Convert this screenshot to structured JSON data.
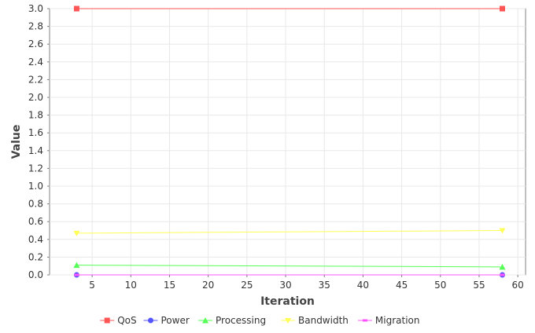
{
  "chart_data": {
    "type": "line",
    "title": "",
    "xlabel": "Iteration",
    "ylabel": "Value",
    "xlim": [
      -0.5,
      61
    ],
    "ylim": [
      0,
      3.0
    ],
    "x_ticks": [
      5,
      10,
      15,
      20,
      25,
      30,
      35,
      40,
      45,
      50,
      55,
      60
    ],
    "y_ticks": [
      0.0,
      0.2,
      0.4,
      0.6,
      0.8,
      1.0,
      1.2,
      1.4,
      1.6,
      1.8,
      2.0,
      2.2,
      2.4,
      2.6,
      2.8,
      3.0
    ],
    "y_tick_labels": [
      "0.0",
      "0.2",
      "0.4",
      "0.6",
      "0.8",
      "1.0",
      "1.2",
      "1.4",
      "1.6",
      "1.8",
      "2.0",
      "2.2",
      "2.4",
      "2.6",
      "2.8",
      "3.0"
    ],
    "x_tick_labels": [
      "5",
      "10",
      "15",
      "20",
      "25",
      "30",
      "35",
      "40",
      "45",
      "50",
      "55",
      "60"
    ],
    "grid": true,
    "legend_position": "bottom",
    "x": [
      3,
      58
    ],
    "series": [
      {
        "name": "QoS",
        "values": [
          3.0,
          3.0
        ],
        "color": "#ff5555",
        "marker": "square"
      },
      {
        "name": "Power",
        "values": [
          0.0,
          0.0
        ],
        "color": "#5555ff",
        "marker": "circle"
      },
      {
        "name": "Processing",
        "values": [
          0.11,
          0.09
        ],
        "color": "#55ff55",
        "marker": "triangle-up"
      },
      {
        "name": "Bandwidth",
        "values": [
          0.47,
          0.5
        ],
        "color": "#ffff55",
        "marker": "triangle-down"
      },
      {
        "name": "Migration",
        "values": [
          0.0,
          0.0
        ],
        "color": "#ff55ff",
        "marker": "square-small"
      }
    ]
  }
}
